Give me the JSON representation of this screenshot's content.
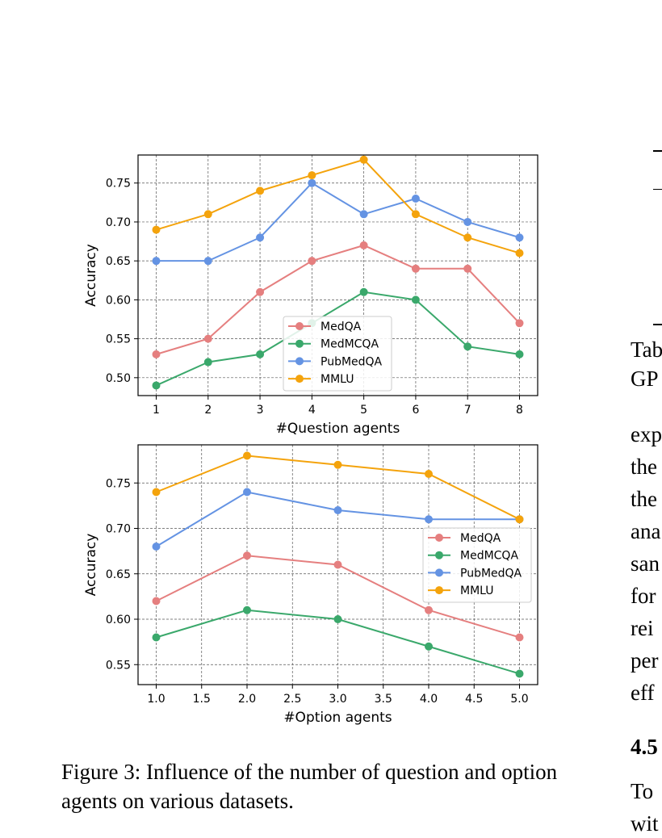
{
  "figure": {
    "caption": "Figure 3: Influence of the number of question and option agents on various datasets.",
    "colors": {
      "MedQA": "#e57f7f",
      "MedMCQA": "#3aa86b",
      "PubMedQA": "#6493e3",
      "MMLU": "#f4a30c"
    }
  },
  "chart_data": [
    {
      "type": "line",
      "xlabel": "#Question agents",
      "ylabel": "Accuracy",
      "x": [
        1,
        2,
        3,
        4,
        5,
        6,
        7,
        8
      ],
      "xticks": [
        "1",
        "2",
        "3",
        "4",
        "5",
        "6",
        "7",
        "8"
      ],
      "xlim": [
        0.65,
        8.35
      ],
      "ylim": [
        0.477,
        0.786
      ],
      "yticks": [
        "0.50",
        "0.55",
        "0.60",
        "0.65",
        "0.70",
        "0.75"
      ],
      "grid": true,
      "legend_position": "lower center",
      "series": [
        {
          "name": "MedQA",
          "values": [
            0.53,
            0.55,
            0.61,
            0.65,
            0.67,
            0.64,
            0.64,
            0.57
          ]
        },
        {
          "name": "MedMCQA",
          "values": [
            0.49,
            0.52,
            0.53,
            0.57,
            0.61,
            0.6,
            0.54,
            0.53
          ]
        },
        {
          "name": "PubMedQA",
          "values": [
            0.65,
            0.65,
            0.68,
            0.75,
            0.71,
            0.73,
            0.7,
            0.68
          ]
        },
        {
          "name": "MMLU",
          "values": [
            0.69,
            0.71,
            0.74,
            0.76,
            0.78,
            0.71,
            0.68,
            0.66
          ]
        }
      ]
    },
    {
      "type": "line",
      "xlabel": "#Option agents",
      "ylabel": "Accuracy",
      "x": [
        1,
        2,
        3,
        4,
        5
      ],
      "xticks": [
        "1.0",
        "1.5",
        "2.0",
        "2.5",
        "3.0",
        "3.5",
        "4.0",
        "4.5",
        "5.0"
      ],
      "xlim": [
        0.8,
        5.2
      ],
      "ylim": [
        0.528,
        0.792
      ],
      "yticks": [
        "0.55",
        "0.60",
        "0.65",
        "0.70",
        "0.75"
      ],
      "grid": true,
      "legend_position": "center right",
      "series": [
        {
          "name": "MedQA",
          "values": [
            0.62,
            0.67,
            0.66,
            0.61,
            0.58
          ]
        },
        {
          "name": "MedMCQA",
          "values": [
            0.58,
            0.61,
            0.6,
            0.57,
            0.54
          ]
        },
        {
          "name": "PubMedQA",
          "values": [
            0.68,
            0.74,
            0.72,
            0.71,
            0.71
          ]
        },
        {
          "name": "MMLU",
          "values": [
            0.74,
            0.78,
            0.77,
            0.76,
            0.71
          ]
        }
      ]
    }
  ],
  "right_column": {
    "fragments": [
      "Tab",
      "GP",
      "exp",
      "the",
      "the",
      "ana",
      "san",
      "for",
      "rei",
      "per",
      "eff",
      "4.5",
      "To",
      "wit"
    ]
  }
}
